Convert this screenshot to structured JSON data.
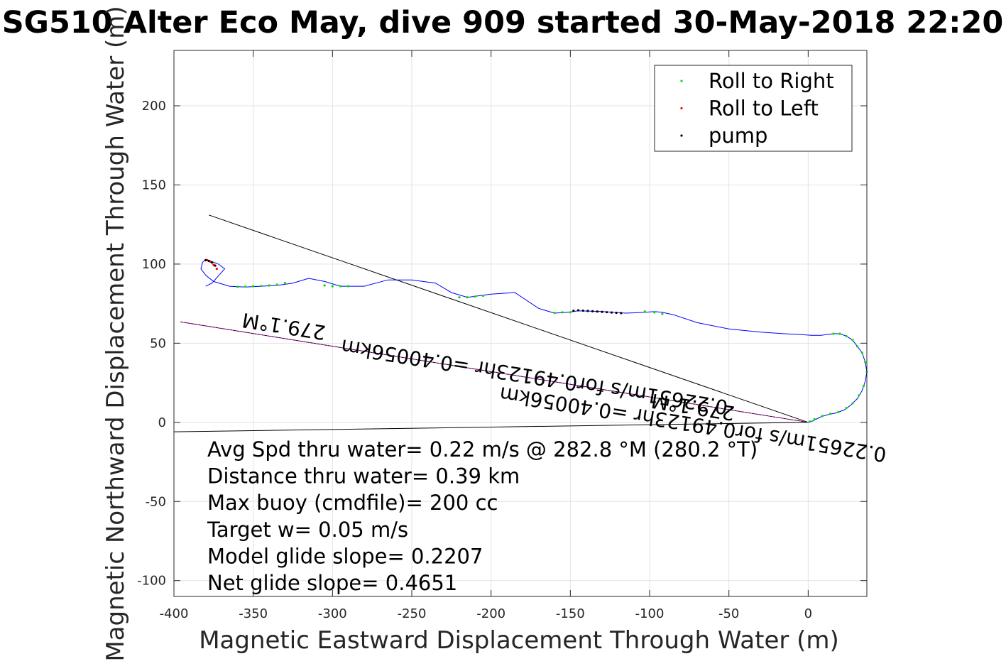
{
  "title": "SG510 Alter Eco May, dive 909 started 30-May-2018 22:20",
  "chart_data": {
    "type": "line",
    "xlabel": "Magnetic Eastward Displacement Through Water (m)",
    "ylabel": "Magnetic Northward Displacement Through Water (m)",
    "xlim": [
      -400,
      37
    ],
    "ylim": [
      -110,
      235
    ],
    "xticks": [
      -400,
      -350,
      -300,
      -250,
      -200,
      -150,
      -100,
      -50,
      0
    ],
    "xtick_labels": [
      "-400",
      "-350",
      "-300",
      "-250",
      "-200",
      "-150",
      "-100",
      "-50",
      "0"
    ],
    "yticks": [
      -100,
      -50,
      0,
      50,
      100,
      150,
      200
    ],
    "ytick_labels": [
      "-100",
      "-50",
      "0",
      "50",
      "100",
      "150",
      "200"
    ],
    "grid": true,
    "legend": {
      "placement": "top-right",
      "entries": [
        {
          "label": "Roll to Right",
          "color": "#00e000"
        },
        {
          "label": "Roll to Left",
          "color": "#ff0000"
        },
        {
          "label": "pump",
          "color": "#000000"
        }
      ]
    },
    "series": [
      {
        "name": "track",
        "color": "#0000ff",
        "x": [
          0,
          3,
          8,
          13,
          18,
          23,
          27,
          31,
          34,
          36,
          37,
          36,
          34,
          31,
          28,
          24,
          20,
          16,
          12,
          8,
          2,
          -5,
          -15,
          -30,
          -50,
          -70,
          -85,
          -92,
          -97,
          -103,
          -115,
          -130,
          -145,
          -152,
          -160,
          -170,
          -185,
          -200,
          -215,
          -225,
          -235,
          -250,
          -265,
          -280,
          -295,
          -305,
          -315,
          -325,
          -335,
          -345,
          -355,
          -365,
          -375,
          -380,
          -383,
          -382,
          -380,
          -377,
          -372,
          -368,
          -376,
          -380
        ],
        "y": [
          0,
          1,
          3.5,
          5,
          6,
          8,
          11,
          15,
          20,
          26,
          32,
          38,
          44,
          48,
          52,
          54.5,
          56,
          56,
          55.5,
          55,
          55,
          55.5,
          56,
          57,
          59,
          63,
          68,
          69.5,
          70,
          69.5,
          69,
          70,
          70.5,
          69.5,
          69,
          72,
          82,
          81,
          79,
          82,
          88,
          90,
          90,
          86,
          86,
          89,
          91,
          88,
          86.5,
          86,
          85.5,
          86,
          89,
          93,
          97,
          101,
          103,
          102,
          100,
          97,
          88,
          86
        ]
      }
    ],
    "roll_right_points": {
      "color": "#00e000",
      "x": [
        1,
        4,
        9,
        14,
        19,
        24,
        28,
        32,
        35,
        37,
        36,
        34,
        31,
        28,
        24,
        20,
        16,
        -92,
        -97,
        -103,
        -150,
        -155,
        -160,
        -205,
        -210,
        -215,
        -220,
        -290,
        -295,
        -300,
        -305,
        -330,
        -335,
        -340,
        -345,
        -350,
        -355,
        -360
      ],
      "y": [
        0.5,
        2,
        4,
        5.5,
        6.5,
        9,
        12,
        17,
        23,
        32,
        38,
        44,
        48,
        52,
        54.5,
        56,
        56,
        68.5,
        69.5,
        70,
        69.5,
        69.5,
        69.2,
        80,
        79.5,
        79,
        79,
        86,
        86,
        86,
        86.5,
        88,
        87,
        86.5,
        86.2,
        86,
        85.8,
        85.6
      ]
    },
    "roll_left_points": {
      "color": "#ff0000",
      "x": [
        -373,
        -375,
        -377,
        -379
      ],
      "y": [
        97,
        99.5,
        101.5,
        102.5
      ]
    },
    "pump_points": {
      "color": "#000000",
      "x": [
        -118,
        -121,
        -124,
        -127,
        -130,
        -133,
        -136,
        -139,
        -142,
        -145,
        -148,
        -380,
        -378,
        -376,
        -374
      ],
      "y": [
        69,
        69.2,
        69.4,
        69.6,
        69.8,
        70,
        70.2,
        70.4,
        70.6,
        70.8,
        70.5,
        102.5,
        102,
        101,
        99
      ]
    },
    "reference_lines": [
      {
        "color": "#000000",
        "x": [
          0,
          -378
        ],
        "y": [
          0,
          131
        ]
      },
      {
        "color": "#000000",
        "x": [
          0,
          -400
        ],
        "y": [
          0,
          -6
        ]
      },
      {
        "color": "#000000",
        "x": [
          0,
          -396
        ],
        "y": [
          0,
          63.5
        ]
      },
      {
        "color": "#ff00ff",
        "x": [
          0,
          -396
        ],
        "y": [
          0,
          63.5
        ],
        "dashed": true
      }
    ],
    "inline_labels": [
      {
        "text": "279.1°M",
        "x": -330,
        "y": 65,
        "rotate": 189
      },
      {
        "text": "279.1°M",
        "x": -72,
        "y": 14,
        "rotate": 189
      },
      {
        "text": "0.22651m/s for0.49123hr =0.40056km",
        "x": -172,
        "y": 33,
        "rotate": 189
      },
      {
        "text": "0.22651m/s for0.49123hr =0.40056km",
        "x": -72,
        "y": 3,
        "rotate": 189
      }
    ],
    "annotations": [
      "Avg Spd thru water=  0.22 m/s @ 282.8 °M (280.2 °T)",
      "Distance thru water=  0.39 km",
      "Max buoy (cmdfile)= 200 cc",
      "Target w= 0.05 m/s",
      "Model glide slope= 0.2207",
      "Net glide slope= 0.4651"
    ]
  }
}
